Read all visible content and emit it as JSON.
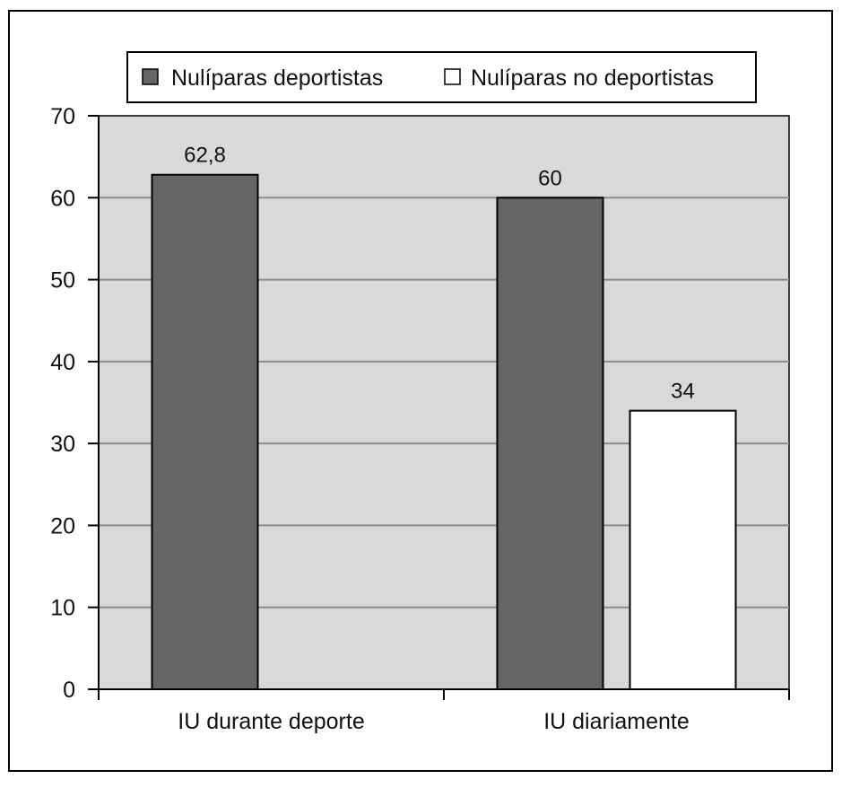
{
  "chart_data": {
    "type": "bar",
    "categories": [
      "IU durante deporte",
      "IU diariamente"
    ],
    "series": [
      {
        "name": "Nulíparas deportistas",
        "values": [
          62.8,
          60
        ],
        "labels": [
          "62,8",
          "60"
        ],
        "color": "#666666"
      },
      {
        "name": "Nulíparas no deportistas",
        "values": [
          null,
          34
        ],
        "labels": [
          "",
          "34"
        ],
        "color": "#ffffff"
      }
    ],
    "ylim": [
      0,
      70
    ],
    "yticks": [
      0,
      10,
      20,
      30,
      40,
      50,
      60,
      70
    ],
    "grid": true,
    "legend": "top",
    "plot_background": "#d9d9d9",
    "title": "",
    "xlabel": "",
    "ylabel": ""
  }
}
